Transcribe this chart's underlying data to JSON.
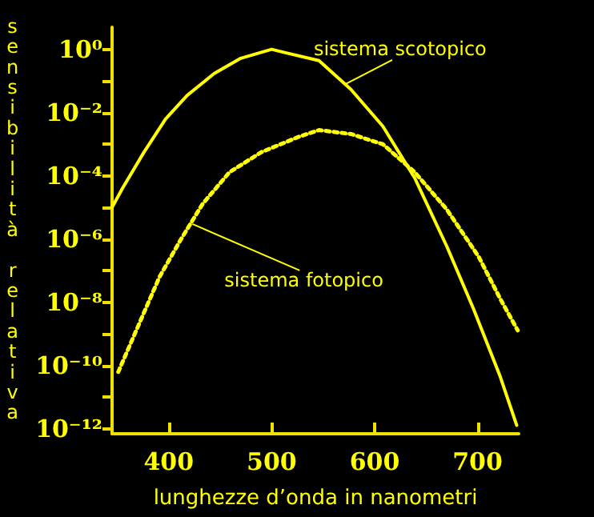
{
  "chart_data": {
    "type": "line",
    "xlabel": "lunghezze d’onda in nanometri",
    "ylabel": "sensibilità relativa",
    "log": "y",
    "marker": "none",
    "xlim": [
      345,
      740
    ],
    "xticks": [
      400,
      500,
      600,
      700
    ],
    "ylim": [
      7e-13,
      5
    ],
    "yticks": [
      {
        "value": 1,
        "label": "10⁰"
      },
      {
        "value": 0.1,
        "label": null
      },
      {
        "value": 0.01,
        "label": "10⁻²"
      },
      {
        "value": 0.001,
        "label": null
      },
      {
        "value": 0.0001,
        "label": "10⁻⁴"
      },
      {
        "value": 1e-05,
        "label": null
      },
      {
        "value": 1e-06,
        "label": "10⁻⁶"
      },
      {
        "value": 1e-07,
        "label": null
      },
      {
        "value": 1e-08,
        "label": "10⁻⁸"
      },
      {
        "value": 1e-09,
        "label": null
      },
      {
        "value": 1e-10,
        "label": "10⁻¹⁰"
      },
      {
        "value": 1e-11,
        "label": null
      },
      {
        "value": 1e-12,
        "label": "10⁻¹²"
      }
    ],
    "series": [
      {
        "color": "#ffff00",
        "line_style": "solid",
        "x": [
          345,
          355,
          376,
          397,
          418,
          444,
          470,
          500,
          515,
          546,
          577,
          608,
          639,
          670,
          696,
          722,
          738
        ],
        "values": [
          1e-05,
          4e-05,
          0.00056,
          0.0063,
          0.035,
          0.17,
          0.52,
          1,
          0.76,
          0.44,
          0.054,
          0.0037,
          8.5e-05,
          6e-07,
          6.3e-09,
          4.5e-11,
          1.3e-12
        ]
      },
      {
        "color": "#ffff00",
        "line_style": "dotted",
        "x": [
          351,
          371,
          391,
          412,
          433,
          459,
          490,
          526,
          546,
          577,
          608,
          639,
          670,
          701,
          722,
          739
        ],
        "values": [
          6.3e-11,
          2e-09,
          6.3e-08,
          1e-06,
          1.3e-05,
          0.00013,
          0.00056,
          0.0017,
          0.0028,
          0.0021,
          0.001,
          0.00013,
          8.7e-06,
          2.8e-07,
          1.3e-08,
          1.3e-09
        ]
      }
    ],
    "annotations": [
      {
        "text": "sistema scotopico",
        "x": 572,
        "y": 0.08
      },
      {
        "text": "sistema fotopico",
        "x": 423,
        "y": 3e-06
      }
    ]
  }
}
